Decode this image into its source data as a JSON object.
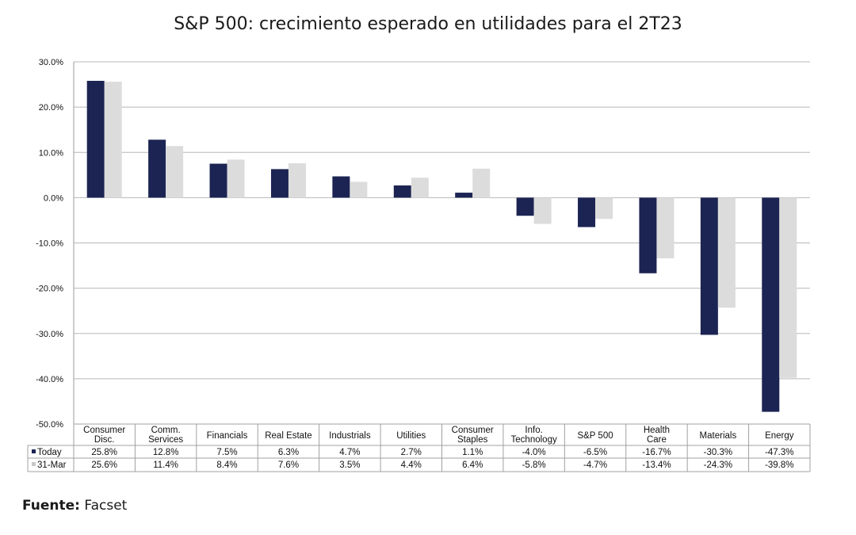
{
  "chart_data": {
    "type": "bar",
    "title": "S&P 500: crecimiento esperado en utilidades para el 2T23",
    "categories": [
      [
        "Consumer",
        "Disc."
      ],
      [
        "Comm.",
        "Services"
      ],
      [
        "Financials"
      ],
      [
        "Real Estate"
      ],
      [
        "Industrials"
      ],
      [
        "Utilities"
      ],
      [
        "Consumer",
        "Staples"
      ],
      [
        "Info.",
        "Technology"
      ],
      [
        "S&P 500"
      ],
      [
        "Health",
        "Care"
      ],
      [
        "Materials"
      ],
      [
        "Energy"
      ]
    ],
    "series": [
      {
        "name": "Today",
        "color": "#1b2452",
        "values": [
          25.8,
          12.8,
          7.5,
          6.3,
          4.7,
          2.7,
          1.1,
          -4.0,
          -6.5,
          -16.7,
          -30.3,
          -47.3
        ],
        "labels": [
          "25.8%",
          "12.8%",
          "7.5%",
          "6.3%",
          "4.7%",
          "2.7%",
          "1.1%",
          "-4.0%",
          "-6.5%",
          "-16.7%",
          "-30.3%",
          "-47.3%"
        ]
      },
      {
        "name": "31-Mar",
        "color": "#dcdcdc",
        "values": [
          25.6,
          11.4,
          8.4,
          7.6,
          3.5,
          4.4,
          6.4,
          -5.8,
          -4.7,
          -13.4,
          -24.3,
          -39.8
        ],
        "labels": [
          "25.6%",
          "11.4%",
          "8.4%",
          "7.6%",
          "3.5%",
          "4.4%",
          "6.4%",
          "-5.8%",
          "-4.7%",
          "-13.4%",
          "-24.3%",
          "-39.8%"
        ]
      }
    ],
    "ylim": [
      -50,
      30
    ],
    "yticks": [
      "30.0%",
      "20.0%",
      "10.0%",
      "0.0%",
      "-10.0%",
      "-20.0%",
      "-30.0%",
      "-40.0%",
      "-50.0%"
    ],
    "ytick_values": [
      30,
      20,
      10,
      0,
      -10,
      -20,
      -30,
      -40,
      -50
    ],
    "grid": true,
    "legend": "data-table-left"
  },
  "source": {
    "label": "Fuente:",
    "text": "Facset"
  }
}
